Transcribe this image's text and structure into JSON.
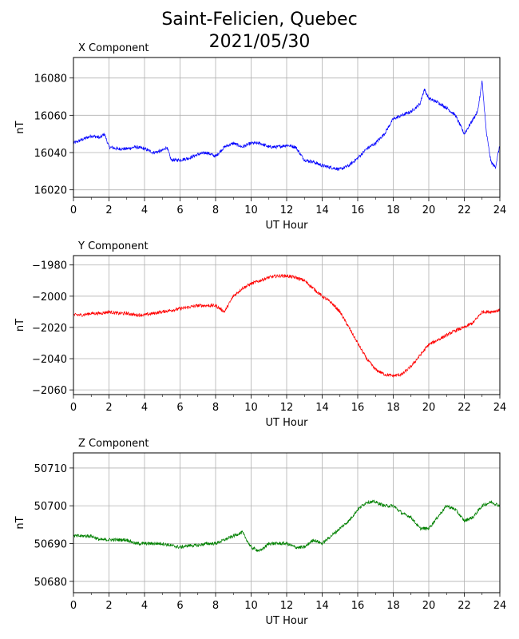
{
  "title_line1": "Saint-Felicien, Quebec",
  "title_line2": "2021/05/30",
  "colors": {
    "x": "#0000ff",
    "y": "#ff0000",
    "z": "#008000",
    "grid": "#b0b0b0"
  },
  "chart_data": [
    {
      "type": "line",
      "title": "X Component",
      "xlabel": "UT Hour",
      "ylabel": "nT",
      "xlim": [
        0,
        24
      ],
      "ylim": [
        16016,
        16091
      ],
      "xticks": [
        "0",
        "2",
        "4",
        "6",
        "8",
        "10",
        "12",
        "14",
        "16",
        "18",
        "20",
        "22",
        "24"
      ],
      "yticks": [
        "16020",
        "16040",
        "16060",
        "16080"
      ],
      "grid": true,
      "color": "#0000ff",
      "x": [
        0,
        0.5,
        1,
        1.5,
        1.75,
        2,
        2.5,
        3,
        3.5,
        4,
        4.5,
        5,
        5.25,
        5.5,
        6,
        6.5,
        7,
        7.5,
        8,
        8.5,
        9,
        9.5,
        10,
        10.5,
        11,
        11.5,
        12,
        12.5,
        13,
        13.5,
        14,
        14.5,
        15,
        15.5,
        16,
        16.5,
        17,
        17.5,
        18,
        18.5,
        19,
        19.5,
        19.75,
        20,
        20.5,
        21,
        21.5,
        22,
        22.5,
        22.75,
        23,
        23.25,
        23.5,
        23.75,
        24
      ],
      "values": [
        16045,
        16047,
        16049,
        16048,
        16050,
        16043,
        16042,
        16042,
        16043,
        16042,
        16040,
        16041,
        16043,
        16036,
        16036,
        16037,
        16039,
        16040,
        16038,
        16043,
        16045,
        16043,
        16045,
        16045,
        16043,
        16043,
        16044,
        16043,
        16036,
        16035,
        16033,
        16032,
        16031,
        16033,
        16037,
        16042,
        16045,
        16050,
        16058,
        16060,
        16062,
        16066,
        16074,
        16069,
        16067,
        16064,
        16060,
        16050,
        16058,
        16062,
        16078,
        16050,
        16035,
        16032,
        16044
      ]
    },
    {
      "type": "line",
      "title": "Y Component",
      "xlabel": "UT Hour",
      "ylabel": "nT",
      "xlim": [
        0,
        24
      ],
      "ylim": [
        -2063,
        -1974
      ],
      "xticks": [
        "0",
        "2",
        "4",
        "6",
        "8",
        "10",
        "12",
        "14",
        "16",
        "18",
        "20",
        "22",
        "24"
      ],
      "yticks": [
        "−1980",
        "−2000",
        "−2020",
        "−2040",
        "−2060"
      ],
      "grid": true,
      "color": "#ff0000",
      "x": [
        0,
        0.5,
        1,
        1.5,
        2,
        2.5,
        3,
        3.5,
        4,
        4.5,
        5,
        5.5,
        6,
        6.5,
        7,
        7.5,
        8,
        8.5,
        9,
        9.5,
        10,
        10.5,
        11,
        11.5,
        12,
        12.5,
        13,
        13.5,
        14,
        14.5,
        15,
        15.5,
        16,
        16.5,
        17,
        17.5,
        18,
        18.5,
        19,
        19.5,
        20,
        20.5,
        21,
        21.5,
        22,
        22.5,
        23,
        23.5,
        24
      ],
      "values": [
        -2012,
        -2012,
        -2011,
        -2011,
        -2010,
        -2011,
        -2011,
        -2012,
        -2012,
        -2011,
        -2010,
        -2009,
        -2008,
        -2007,
        -2006,
        -2006,
        -2006,
        -2010,
        -2000,
        -1995,
        -1992,
        -1990,
        -1988,
        -1987,
        -1987,
        -1988,
        -1990,
        -1995,
        -2000,
        -2004,
        -2010,
        -2020,
        -2030,
        -2040,
        -2047,
        -2050,
        -2051,
        -2050,
        -2045,
        -2038,
        -2031,
        -2028,
        -2025,
        -2022,
        -2020,
        -2017,
        -2010,
        -2010,
        -2009
      ]
    },
    {
      "type": "line",
      "title": "Z Component",
      "xlabel": "UT Hour",
      "ylabel": "nT",
      "xlim": [
        0,
        24
      ],
      "ylim": [
        50677,
        50714
      ],
      "xticks": [
        "0",
        "2",
        "4",
        "6",
        "8",
        "10",
        "12",
        "14",
        "16",
        "18",
        "20",
        "22",
        "24"
      ],
      "yticks": [
        "50680",
        "50690",
        "50700",
        "50710"
      ],
      "grid": true,
      "color": "#008000",
      "x": [
        0,
        0.5,
        1,
        1.5,
        2,
        2.5,
        3,
        3.5,
        4,
        4.5,
        5,
        5.5,
        6,
        6.5,
        7,
        7.5,
        8,
        8.5,
        9,
        9.5,
        10,
        10.5,
        11,
        11.5,
        12,
        12.5,
        13,
        13.5,
        14,
        14.5,
        15,
        15.5,
        16,
        16.5,
        17,
        17.5,
        18,
        18.5,
        19,
        19.5,
        20,
        20.5,
        21,
        21.5,
        22,
        22.5,
        23,
        23.5,
        24
      ],
      "values": [
        50692,
        50692,
        50692,
        50691,
        50691,
        50691,
        50691,
        50690,
        50690,
        50690,
        50690,
        50689.5,
        50689,
        50689.5,
        50689.5,
        50690,
        50690,
        50691,
        50692,
        50693,
        50689,
        50688,
        50690,
        50690,
        50690,
        50689,
        50689,
        50691,
        50690,
        50692,
        50694,
        50696,
        50699,
        50701,
        50701,
        50700,
        50700,
        50698,
        50697,
        50694,
        50694,
        50697,
        50700,
        50699,
        50696,
        50697,
        50700,
        50701,
        50700
      ]
    }
  ]
}
